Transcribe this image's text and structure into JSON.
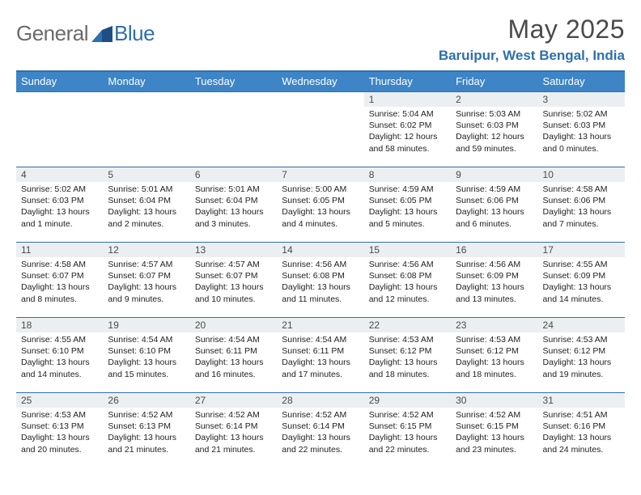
{
  "brand": {
    "part1": "General",
    "part2": "Blue"
  },
  "title": "May 2025",
  "location": "Baruipur, West Bengal, India",
  "colors": {
    "header_bg": "#3d85c6",
    "accent": "#2f6fae",
    "daynum_bg": "#eceff1",
    "text": "#222222",
    "muted": "#4a4a4a",
    "white": "#ffffff"
  },
  "weekdays": [
    "Sunday",
    "Monday",
    "Tuesday",
    "Wednesday",
    "Thursday",
    "Friday",
    "Saturday"
  ],
  "calendar": {
    "first_weekday_index": 4,
    "days_in_month": 31
  },
  "days": {
    "1": {
      "sunrise": "5:04 AM",
      "sunset": "6:02 PM",
      "daylight": "12 hours and 58 minutes."
    },
    "2": {
      "sunrise": "5:03 AM",
      "sunset": "6:03 PM",
      "daylight": "12 hours and 59 minutes."
    },
    "3": {
      "sunrise": "5:02 AM",
      "sunset": "6:03 PM",
      "daylight": "13 hours and 0 minutes."
    },
    "4": {
      "sunrise": "5:02 AM",
      "sunset": "6:03 PM",
      "daylight": "13 hours and 1 minute."
    },
    "5": {
      "sunrise": "5:01 AM",
      "sunset": "6:04 PM",
      "daylight": "13 hours and 2 minutes."
    },
    "6": {
      "sunrise": "5:01 AM",
      "sunset": "6:04 PM",
      "daylight": "13 hours and 3 minutes."
    },
    "7": {
      "sunrise": "5:00 AM",
      "sunset": "6:05 PM",
      "daylight": "13 hours and 4 minutes."
    },
    "8": {
      "sunrise": "4:59 AM",
      "sunset": "6:05 PM",
      "daylight": "13 hours and 5 minutes."
    },
    "9": {
      "sunrise": "4:59 AM",
      "sunset": "6:06 PM",
      "daylight": "13 hours and 6 minutes."
    },
    "10": {
      "sunrise": "4:58 AM",
      "sunset": "6:06 PM",
      "daylight": "13 hours and 7 minutes."
    },
    "11": {
      "sunrise": "4:58 AM",
      "sunset": "6:07 PM",
      "daylight": "13 hours and 8 minutes."
    },
    "12": {
      "sunrise": "4:57 AM",
      "sunset": "6:07 PM",
      "daylight": "13 hours and 9 minutes."
    },
    "13": {
      "sunrise": "4:57 AM",
      "sunset": "6:07 PM",
      "daylight": "13 hours and 10 minutes."
    },
    "14": {
      "sunrise": "4:56 AM",
      "sunset": "6:08 PM",
      "daylight": "13 hours and 11 minutes."
    },
    "15": {
      "sunrise": "4:56 AM",
      "sunset": "6:08 PM",
      "daylight": "13 hours and 12 minutes."
    },
    "16": {
      "sunrise": "4:56 AM",
      "sunset": "6:09 PM",
      "daylight": "13 hours and 13 minutes."
    },
    "17": {
      "sunrise": "4:55 AM",
      "sunset": "6:09 PM",
      "daylight": "13 hours and 14 minutes."
    },
    "18": {
      "sunrise": "4:55 AM",
      "sunset": "6:10 PM",
      "daylight": "13 hours and 14 minutes."
    },
    "19": {
      "sunrise": "4:54 AM",
      "sunset": "6:10 PM",
      "daylight": "13 hours and 15 minutes."
    },
    "20": {
      "sunrise": "4:54 AM",
      "sunset": "6:11 PM",
      "daylight": "13 hours and 16 minutes."
    },
    "21": {
      "sunrise": "4:54 AM",
      "sunset": "6:11 PM",
      "daylight": "13 hours and 17 minutes."
    },
    "22": {
      "sunrise": "4:53 AM",
      "sunset": "6:12 PM",
      "daylight": "13 hours and 18 minutes."
    },
    "23": {
      "sunrise": "4:53 AM",
      "sunset": "6:12 PM",
      "daylight": "13 hours and 18 minutes."
    },
    "24": {
      "sunrise": "4:53 AM",
      "sunset": "6:12 PM",
      "daylight": "13 hours and 19 minutes."
    },
    "25": {
      "sunrise": "4:53 AM",
      "sunset": "6:13 PM",
      "daylight": "13 hours and 20 minutes."
    },
    "26": {
      "sunrise": "4:52 AM",
      "sunset": "6:13 PM",
      "daylight": "13 hours and 21 minutes."
    },
    "27": {
      "sunrise": "4:52 AM",
      "sunset": "6:14 PM",
      "daylight": "13 hours and 21 minutes."
    },
    "28": {
      "sunrise": "4:52 AM",
      "sunset": "6:14 PM",
      "daylight": "13 hours and 22 minutes."
    },
    "29": {
      "sunrise": "4:52 AM",
      "sunset": "6:15 PM",
      "daylight": "13 hours and 22 minutes."
    },
    "30": {
      "sunrise": "4:52 AM",
      "sunset": "6:15 PM",
      "daylight": "13 hours and 23 minutes."
    },
    "31": {
      "sunrise": "4:51 AM",
      "sunset": "6:16 PM",
      "daylight": "13 hours and 24 minutes."
    }
  },
  "labels": {
    "sunrise": "Sunrise:",
    "sunset": "Sunset:",
    "daylight": "Daylight:"
  }
}
